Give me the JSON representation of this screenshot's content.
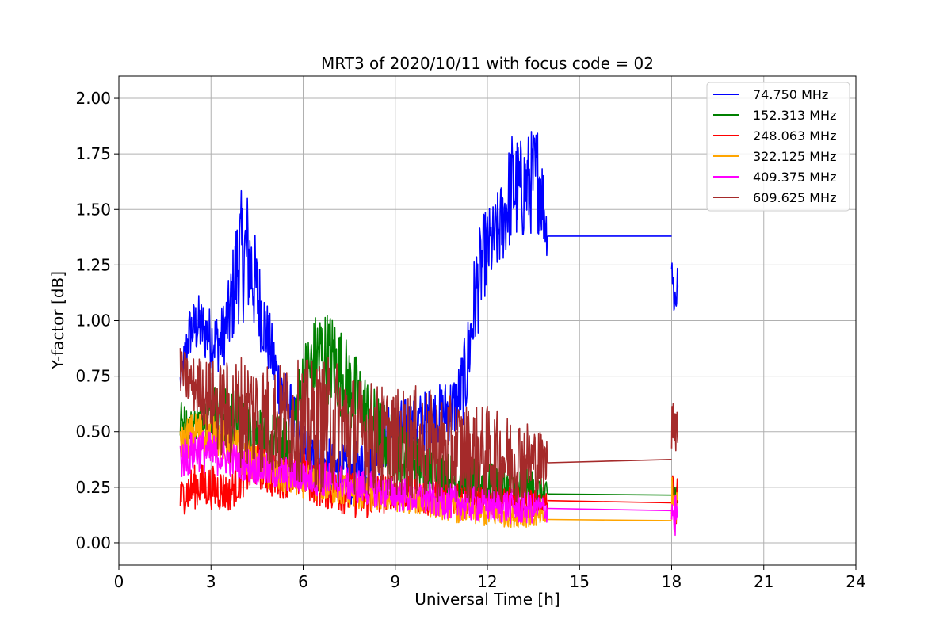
{
  "chart_data": {
    "type": "line",
    "title": "MRT3 of 2020/10/11 with focus code = 02",
    "xlabel": "Universal Time [h]",
    "ylabel": "Y-factor [dB]",
    "xlim": [
      0,
      24
    ],
    "ylim": [
      -0.1,
      2.1
    ],
    "xticks": [
      0,
      3,
      6,
      9,
      12,
      15,
      18,
      21,
      24
    ],
    "xtick_labels": [
      "0",
      "3",
      "6",
      "9",
      "12",
      "15",
      "18",
      "21",
      "24"
    ],
    "yticks": [
      0.0,
      0.25,
      0.5,
      0.75,
      1.0,
      1.25,
      1.5,
      1.75,
      2.0
    ],
    "ytick_labels": [
      "0.00",
      "0.25",
      "0.50",
      "0.75",
      "1.00",
      "1.25",
      "1.50",
      "1.75",
      "2.00"
    ],
    "grid": true,
    "legend_position": "top-right",
    "series": [
      {
        "name": " 74.750 MHz",
        "color": "#0000ff",
        "segments": [
          {
            "x": [
              2.0,
              2.3,
              2.6,
              3.0,
              3.3,
              3.6,
              3.9,
              4.2,
              4.5,
              4.8,
              5.2,
              5.6,
              6.0,
              6.5,
              7.0,
              7.5,
              8.0,
              8.5,
              9.0,
              9.5,
              10.0,
              10.5,
              11.0,
              11.3,
              11.6,
              11.9,
              12.2,
              12.5,
              12.8,
              13.1,
              13.4,
              13.7,
              13.95
            ],
            "y": [
              0.72,
              0.95,
              0.98,
              0.92,
              0.9,
              1.02,
              1.28,
              1.3,
              1.12,
              0.95,
              0.72,
              0.58,
              0.4,
              0.35,
              0.32,
              0.3,
              0.34,
              0.45,
              0.5,
              0.52,
              0.55,
              0.58,
              0.62,
              0.75,
              1.1,
              1.3,
              1.35,
              1.45,
              1.6,
              1.58,
              1.62,
              1.65,
              1.38
            ]
          },
          {
            "x": [
              13.95,
              18.0
            ],
            "y": [
              1.38,
              1.38
            ]
          },
          {
            "x": [
              18.0,
              18.05,
              18.1,
              18.15,
              18.2
            ],
            "y": [
              1.3,
              1.15,
              1.1,
              1.12,
              1.15
            ]
          }
        ],
        "spread": [
          0.08,
          0.12,
          0.14,
          0.14,
          0.14,
          0.18,
          0.3,
          0.3,
          0.22,
          0.16,
          0.14,
          0.14,
          0.14,
          0.14,
          0.14,
          0.14,
          0.14,
          0.14,
          0.14,
          0.14,
          0.14,
          0.14,
          0.16,
          0.2,
          0.24,
          0.2,
          0.18,
          0.2,
          0.26,
          0.24,
          0.24,
          0.26,
          0.1
        ]
      },
      {
        "name": "152.313 MHz",
        "color": "#008000",
        "segments": [
          {
            "x": [
              2.0,
              2.3,
              2.6,
              3.0,
              3.5,
              4.0,
              4.5,
              5.0,
              5.5,
              6.0,
              6.5,
              7.0,
              7.5,
              8.0,
              8.5,
              9.0,
              9.5,
              10.0,
              10.5,
              11.0,
              11.5,
              12.0,
              12.5,
              13.0,
              13.5,
              13.95
            ],
            "y": [
              0.55,
              0.52,
              0.55,
              0.6,
              0.58,
              0.55,
              0.5,
              0.45,
              0.42,
              0.72,
              0.85,
              0.82,
              0.7,
              0.6,
              0.5,
              0.42,
              0.38,
              0.34,
              0.3,
              0.28,
              0.28,
              0.26,
              0.25,
              0.24,
              0.23,
              0.22
            ]
          },
          {
            "x": [
              13.95,
              18.0
            ],
            "y": [
              0.22,
              0.215
            ]
          },
          {
            "x": [
              18.0,
              18.1,
              18.2
            ],
            "y": [
              0.24,
              0.22,
              0.2
            ]
          }
        ],
        "spread": [
          0.1,
          0.08,
          0.08,
          0.12,
          0.14,
          0.14,
          0.14,
          0.14,
          0.14,
          0.18,
          0.22,
          0.22,
          0.2,
          0.18,
          0.16,
          0.14,
          0.12,
          0.12,
          0.12,
          0.12,
          0.1,
          0.1,
          0.1,
          0.1,
          0.1,
          0.05
        ]
      },
      {
        "name": "248.063 MHz",
        "color": "#ff0000",
        "segments": [
          {
            "x": [
              2.0,
              2.3,
              2.6,
              3.0,
              3.3,
              3.6,
              4.0,
              4.5,
              5.0,
              5.5,
              6.0,
              6.5,
              7.0,
              7.5,
              8.0,
              8.5,
              9.0,
              9.5,
              10.0,
              10.5,
              11.0,
              11.5,
              12.0,
              12.5,
              13.0,
              13.5,
              13.95
            ],
            "y": [
              0.2,
              0.24,
              0.26,
              0.25,
              0.24,
              0.22,
              0.3,
              0.35,
              0.3,
              0.3,
              0.32,
              0.28,
              0.24,
              0.22,
              0.2,
              0.22,
              0.24,
              0.22,
              0.2,
              0.2,
              0.2,
              0.19,
              0.19,
              0.19,
              0.19,
              0.18,
              0.18
            ]
          },
          {
            "x": [
              13.95,
              18.0
            ],
            "y": [
              0.19,
              0.18
            ]
          },
          {
            "x": [
              18.0,
              18.1,
              18.2
            ],
            "y": [
              0.2,
              0.18,
              0.18
            ]
          }
        ],
        "spread": [
          0.08,
          0.1,
          0.1,
          0.1,
          0.1,
          0.08,
          0.1,
          0.1,
          0.1,
          0.1,
          0.12,
          0.12,
          0.1,
          0.1,
          0.1,
          0.1,
          0.08,
          0.08,
          0.08,
          0.08,
          0.08,
          0.06,
          0.06,
          0.06,
          0.06,
          0.06,
          0.04
        ]
      },
      {
        "name": "322.125 MHz",
        "color": "#ffa500",
        "segments": [
          {
            "x": [
              2.0,
              2.3,
              2.6,
              3.0,
              3.5,
              4.0,
              4.5,
              5.0,
              6.0,
              7.0,
              8.0,
              9.0,
              10.0,
              11.0,
              12.0,
              13.0,
              13.95
            ],
            "y": [
              0.45,
              0.48,
              0.5,
              0.5,
              0.45,
              0.4,
              0.35,
              0.3,
              0.28,
              0.25,
              0.22,
              0.2,
              0.18,
              0.15,
              0.13,
              0.12,
              0.11
            ]
          },
          {
            "x": [
              13.95,
              18.0
            ],
            "y": [
              0.105,
              0.1
            ]
          },
          {
            "x": [
              18.0,
              18.1,
              18.2
            ],
            "y": [
              0.18,
              0.15,
              0.2
            ]
          }
        ],
        "spread": [
          0.08,
          0.1,
          0.1,
          0.1,
          0.1,
          0.1,
          0.08,
          0.08,
          0.08,
          0.08,
          0.08,
          0.06,
          0.06,
          0.06,
          0.06,
          0.05,
          0.04
        ]
      },
      {
        "name": "409.375 MHz",
        "color": "#ff00ff",
        "segments": [
          {
            "x": [
              2.0,
              2.3,
              2.6,
              3.0,
              3.5,
              4.0,
              4.5,
              5.0,
              6.0,
              7.0,
              8.0,
              9.0,
              10.0,
              11.0,
              12.0,
              13.0,
              13.95
            ],
            "y": [
              0.38,
              0.4,
              0.42,
              0.4,
              0.38,
              0.36,
              0.34,
              0.32,
              0.3,
              0.28,
              0.25,
              0.22,
              0.2,
              0.18,
              0.17,
              0.16,
              0.15
            ]
          },
          {
            "x": [
              13.95,
              18.0
            ],
            "y": [
              0.155,
              0.145
            ]
          },
          {
            "x": [
              18.0,
              18.1,
              18.2
            ],
            "y": [
              0.15,
              0.12,
              0.14
            ]
          }
        ],
        "spread": [
          0.1,
          0.1,
          0.1,
          0.1,
          0.08,
          0.08,
          0.08,
          0.08,
          0.08,
          0.08,
          0.08,
          0.08,
          0.08,
          0.08,
          0.08,
          0.08,
          0.06
        ]
      },
      {
        "name": "609.625 MHz",
        "color": "#a52a2a",
        "segments": [
          {
            "x": [
              2.0,
              2.3,
              2.6,
              3.0,
              3.3,
              3.6,
              4.0,
              4.5,
              5.0,
              5.5,
              6.0,
              6.5,
              7.0,
              7.5,
              8.0,
              8.5,
              9.0,
              9.5,
              10.0,
              10.5,
              11.0,
              11.5,
              12.0,
              12.5,
              13.0,
              13.5,
              13.95
            ],
            "y": [
              0.78,
              0.72,
              0.7,
              0.65,
              0.6,
              0.58,
              0.6,
              0.58,
              0.55,
              0.55,
              0.55,
              0.52,
              0.55,
              0.5,
              0.48,
              0.46,
              0.45,
              0.45,
              0.44,
              0.42,
              0.42,
              0.4,
              0.4,
              0.38,
              0.38,
              0.36,
              0.36
            ]
          },
          {
            "x": [
              13.95,
              18.0
            ],
            "y": [
              0.36,
              0.375
            ]
          },
          {
            "x": [
              18.0,
              18.05,
              18.1,
              18.15,
              18.2
            ],
            "y": [
              0.5,
              0.6,
              0.55,
              0.5,
              0.45
            ]
          }
        ],
        "spread": [
          0.1,
          0.12,
          0.14,
          0.18,
          0.22,
          0.24,
          0.26,
          0.26,
          0.26,
          0.26,
          0.28,
          0.3,
          0.3,
          0.28,
          0.26,
          0.26,
          0.24,
          0.26,
          0.26,
          0.24,
          0.24,
          0.22,
          0.22,
          0.2,
          0.2,
          0.18,
          0.12
        ]
      }
    ]
  }
}
